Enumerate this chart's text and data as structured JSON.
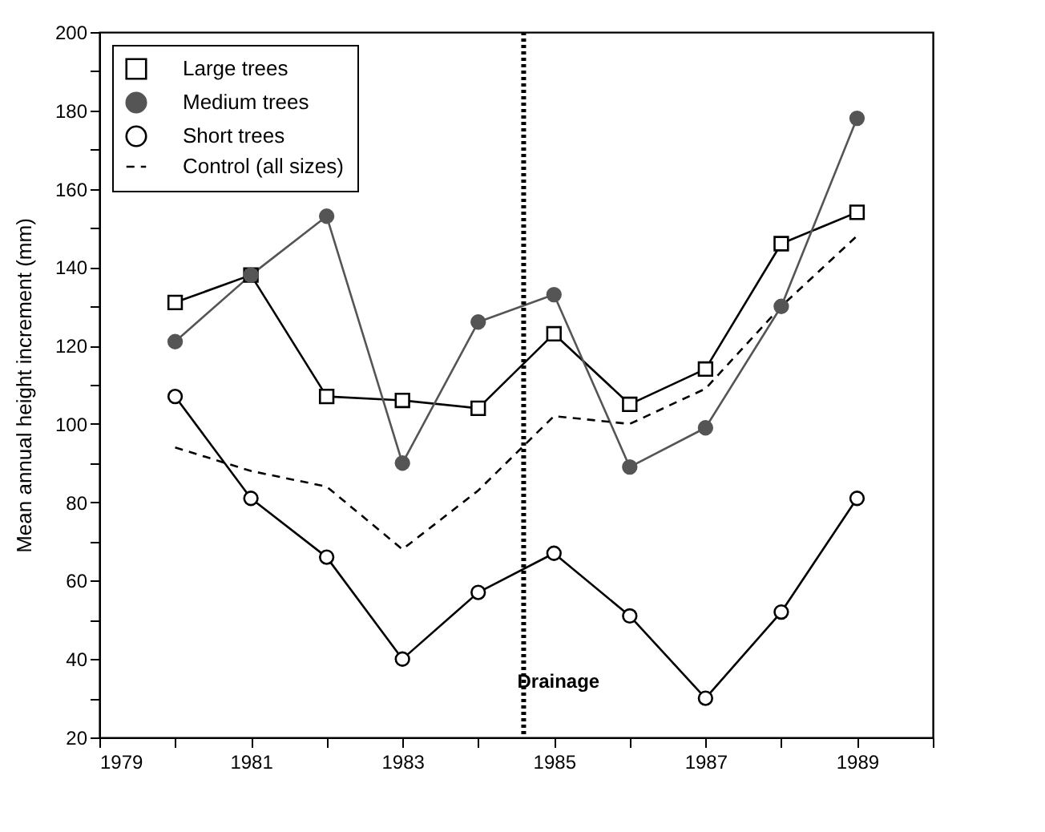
{
  "chart_data": {
    "type": "line",
    "ylabel": "Mean annual height increment (mm)",
    "x": [
      1980,
      1981,
      1982,
      1983,
      1984,
      1985,
      1986,
      1987,
      1988,
      1989
    ],
    "series": [
      {
        "name": "Large trees",
        "color": "#000000",
        "marker": "square",
        "values": [
          131,
          138,
          107,
          106,
          104,
          123,
          105,
          114,
          146,
          154
        ]
      },
      {
        "name": "Medium trees",
        "color": "#555555",
        "marker": "circle",
        "values": [
          121,
          138,
          153,
          90,
          126,
          133,
          89,
          99,
          130,
          178
        ]
      },
      {
        "name": "Short trees",
        "color": "#000000",
        "marker": "circle",
        "values": [
          107,
          81,
          66,
          40,
          57,
          67,
          51,
          30,
          52,
          81
        ]
      },
      {
        "name": "Control (all sizes)",
        "color": "#000000",
        "marker": "none",
        "line_style": "dashed",
        "values": [
          94,
          88,
          84,
          68,
          83,
          102,
          100,
          109,
          130,
          148
        ]
      }
    ],
    "xlim": [
      1979,
      1990
    ],
    "xticks": [
      1979,
      {
        "value": 1980,
        "label": null
      },
      1981,
      {
        "value": 1982,
        "label": null
      },
      1983,
      {
        "value": 1984,
        "label": null
      },
      1985,
      {
        "value": 1986,
        "label": null
      },
      1987,
      {
        "value": 1988,
        "label": null
      },
      1989,
      {
        "value": 1990,
        "label": null
      }
    ],
    "ylim": [
      20,
      200
    ],
    "yticks": [
      20,
      {
        "value": 30,
        "label": null
      },
      40,
      {
        "value": 50,
        "label": null
      },
      60,
      {
        "value": 70,
        "label": null
      },
      80,
      {
        "value": 90,
        "label": null
      },
      100,
      {
        "value": 110,
        "label": null
      },
      120,
      {
        "value": 130,
        "label": null
      },
      140,
      {
        "value": 150,
        "label": null
      },
      160,
      {
        "value": 170,
        "label": null
      },
      180,
      {
        "value": 190,
        "label": null
      },
      200
    ],
    "ref_lines": [
      {
        "axis": "x",
        "value": 1984.6,
        "label": "Drainage",
        "color": "#000000",
        "line_style": "dotted"
      }
    ],
    "grid": false,
    "legend": "top left"
  }
}
